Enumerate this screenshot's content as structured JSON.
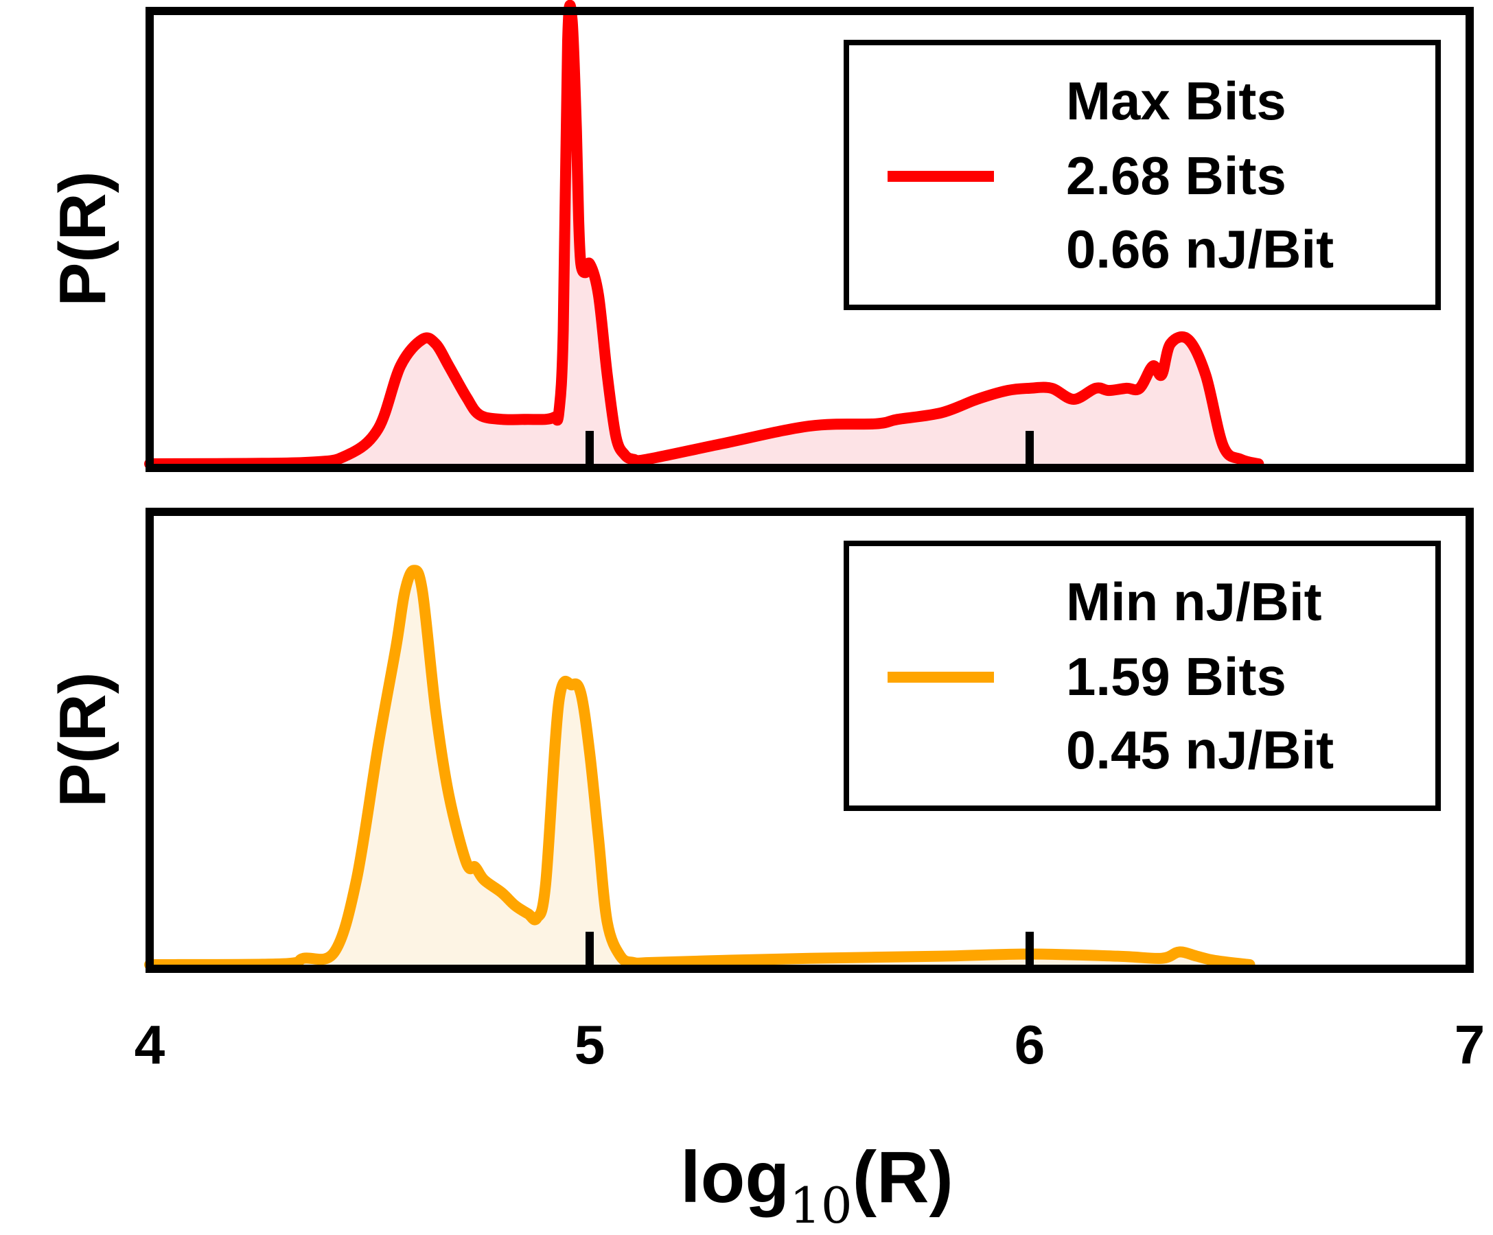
{
  "chart_data": [
    {
      "type": "area",
      "panel": "top",
      "color": "#ff0000",
      "fill": "#fde3e6",
      "ylabel": "P(R)",
      "xlim": [
        4,
        7
      ],
      "legend": {
        "placement": "top-right",
        "lines": [
          "Max Bits",
          "2.68 Bits",
          "0.66 nJ/Bit"
        ]
      },
      "series": [
        {
          "name": "Max Bits",
          "x": [
            4.0,
            4.35,
            4.45,
            4.52,
            4.57,
            4.62,
            4.65,
            4.68,
            4.72,
            4.75,
            4.8,
            4.86,
            4.9,
            4.92,
            4.93,
            4.94,
            4.95,
            4.96,
            4.97,
            4.975,
            4.98,
            4.99,
            5.0,
            5.02,
            5.04,
            5.06,
            5.08,
            5.1,
            5.13,
            5.3,
            5.5,
            5.65,
            5.7,
            5.8,
            5.88,
            5.95,
            6.0,
            6.05,
            6.1,
            6.15,
            6.18,
            6.22,
            6.25,
            6.28,
            6.3,
            6.32,
            6.36,
            6.4,
            6.44,
            6.48,
            6.52
          ],
          "y": [
            0.0,
            0.003,
            0.02,
            0.08,
            0.22,
            0.28,
            0.27,
            0.22,
            0.15,
            0.11,
            0.1,
            0.1,
            0.1,
            0.105,
            0.115,
            0.3,
            0.95,
            1.0,
            0.75,
            0.55,
            0.45,
            0.43,
            0.45,
            0.38,
            0.2,
            0.06,
            0.02,
            0.01,
            0.01,
            0.045,
            0.085,
            0.09,
            0.1,
            0.115,
            0.145,
            0.165,
            0.17,
            0.17,
            0.145,
            0.17,
            0.165,
            0.17,
            0.17,
            0.22,
            0.2,
            0.27,
            0.28,
            0.2,
            0.04,
            0.01,
            0.0
          ]
        }
      ]
    },
    {
      "type": "area",
      "panel": "bottom",
      "color": "#ffa500",
      "fill": "#fdf4e4",
      "ylabel": "P(R)",
      "xlim": [
        4,
        7
      ],
      "xlabel": "log10(R)",
      "xlabel_main": "log",
      "xlabel_sub": "10",
      "xlabel_tail": "(R)",
      "xticks": [
        4,
        5,
        6,
        7
      ],
      "xtick_labels": [
        "4",
        "5",
        "6",
        "7"
      ],
      "legend": {
        "placement": "top-right",
        "lines": [
          "Min nJ/Bit",
          "1.59 Bits",
          "0.45 nJ/Bit"
        ]
      },
      "series": [
        {
          "name": "Min nJ/Bit",
          "x": [
            4.0,
            4.3,
            4.35,
            4.42,
            4.47,
            4.52,
            4.56,
            4.58,
            4.6,
            4.62,
            4.65,
            4.68,
            4.72,
            4.74,
            4.76,
            4.8,
            4.83,
            4.86,
            4.88,
            4.9,
            4.93,
            4.96,
            4.98,
            5.0,
            5.02,
            5.04,
            5.07,
            5.1,
            5.14,
            5.3,
            5.5,
            5.8,
            6.0,
            6.2,
            6.3,
            6.34,
            6.38,
            6.42,
            6.5
          ],
          "y": [
            0.0,
            0.002,
            0.015,
            0.03,
            0.2,
            0.52,
            0.75,
            0.88,
            0.93,
            0.88,
            0.6,
            0.4,
            0.24,
            0.23,
            0.2,
            0.17,
            0.14,
            0.12,
            0.11,
            0.19,
            0.62,
            0.66,
            0.64,
            0.5,
            0.3,
            0.1,
            0.02,
            0.005,
            0.005,
            0.01,
            0.015,
            0.02,
            0.025,
            0.02,
            0.015,
            0.03,
            0.02,
            0.01,
            0.0
          ]
        }
      ]
    }
  ]
}
